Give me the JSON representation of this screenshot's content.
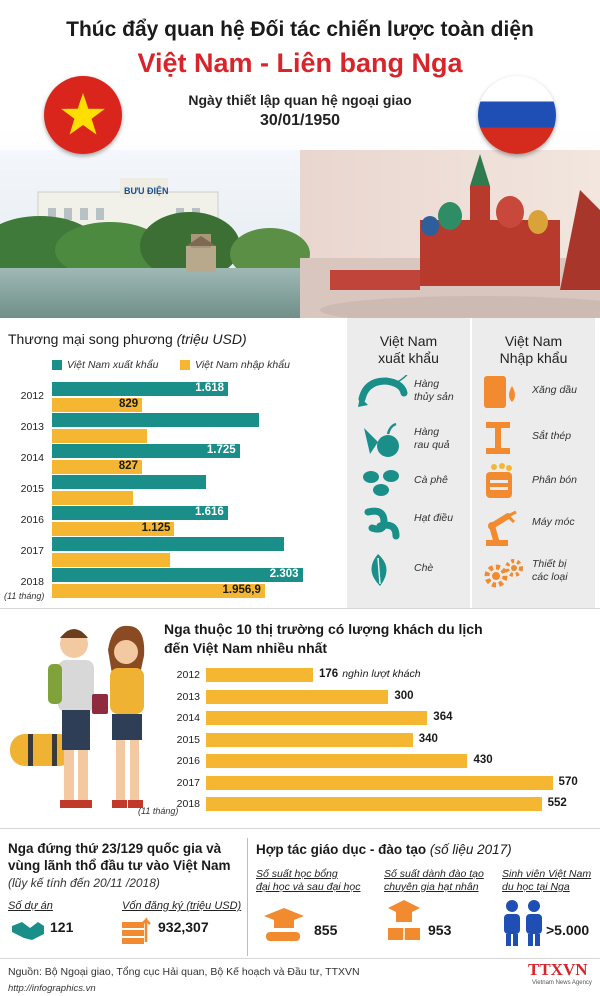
{
  "header": {
    "title_line1": "Thúc đẩy quan hệ Đối tác chiến lược toàn diện",
    "title_line2": "Việt Nam - Liên bang Nga",
    "subtitle": "Ngày thiết lập quan hệ ngoại giao",
    "date": "30/01/1950",
    "post_office_sign": "BƯU ĐIỆN"
  },
  "colors": {
    "teal": "#1a8f8a",
    "orange": "#f5b731",
    "red": "#d8242b",
    "panel": "#ececec"
  },
  "trade": {
    "title": "Thương mại song phương",
    "unit": "(triệu USD)",
    "legend_export": "Việt Nam xuất khẩu",
    "legend_import": "Việt Nam nhập khẩu",
    "year_note": "(11 tháng)"
  },
  "chart_data": [
    {
      "type": "bar",
      "title": "Thương mại song phương (triệu USD)",
      "categories": [
        "2012",
        "2013",
        "2014",
        "2015",
        "2016",
        "2017",
        "2018"
      ],
      "series": [
        {
          "name": "Việt Nam xuất khẩu",
          "values": [
            1618,
            1900,
            1725,
            1420,
            1616,
            2130,
            2303
          ],
          "labels": [
            "1.618",
            "",
            "1.725",
            "",
            "1.616",
            "",
            "2.303"
          ]
        },
        {
          "name": "Việt Nam nhập khẩu",
          "values": [
            829,
            870,
            827,
            740,
            1125,
            1080,
            1956.9
          ],
          "labels": [
            "829",
            "",
            "827",
            "",
            "1.125",
            "",
            "1.956,9"
          ]
        }
      ],
      "legend": "top"
    },
    {
      "type": "bar",
      "title": "Nga thuộc 10 thị trường có lượng khách du lịch đến Việt Nam nhiều nhất",
      "categories": [
        "2012",
        "2013",
        "2014",
        "2015",
        "2016",
        "2017",
        "2018"
      ],
      "values": [
        176,
        300,
        364,
        340,
        430,
        570,
        552
      ],
      "unit_label": "nghìn lượt khách"
    }
  ],
  "exports": {
    "heading": [
      "Việt Nam",
      "xuất khẩu"
    ],
    "items": [
      {
        "icon": "shrimp-icon",
        "label": [
          "Hàng",
          "thủy sản"
        ]
      },
      {
        "icon": "vegetables-icon",
        "label": [
          "Hàng",
          "rau quả"
        ]
      },
      {
        "icon": "coffee-beans-icon",
        "label": [
          "Cà phê"
        ]
      },
      {
        "icon": "cashew-icon",
        "label": [
          "Hạt điều"
        ]
      },
      {
        "icon": "tea-leaf-icon",
        "label": [
          "Chè"
        ]
      }
    ]
  },
  "imports": {
    "heading": [
      "Việt Nam",
      "Nhập khẩu"
    ],
    "items": [
      {
        "icon": "oil-barrel-icon",
        "label": [
          "Xăng dầu"
        ]
      },
      {
        "icon": "steel-beam-icon",
        "label": [
          "Sắt thép"
        ]
      },
      {
        "icon": "fertilizer-bag-icon",
        "label": [
          "Phân bón"
        ]
      },
      {
        "icon": "robot-arm-icon",
        "label": [
          "Máy móc"
        ]
      },
      {
        "icon": "gears-icon",
        "label": [
          "Thiết bị",
          "các loại"
        ]
      }
    ]
  },
  "tourism": {
    "title_line1": "Nga thuộc 10 thị trường có lượng khách du lịch",
    "title_line2": "đến Việt Nam nhiều nhất",
    "first_label": "176",
    "unit_label": "nghìn lượt khách",
    "values": [
      "300",
      "364",
      "340",
      "430",
      "570",
      "552"
    ],
    "year_note": "(11 tháng)"
  },
  "investment": {
    "title_line1": "Nga đứng thứ 23/129 quốc gia và",
    "title_line2": "vùng lãnh thổ đầu tư vào Việt Nam",
    "note": "(lũy kế tính đến 20/11 /2018)",
    "projects_label": "Số dự án",
    "projects_value": "121",
    "capital_label": "Vốn đăng ký (triệu USD)",
    "capital_value": "932,307"
  },
  "education": {
    "title": "Hợp tác giáo dục - đào tạo",
    "title_note": "(số liệu 2017)",
    "items": [
      {
        "label": [
          "Số suất học bổng",
          "đại học và sau đại học"
        ],
        "value": "855",
        "icon": "graduate-diploma-icon"
      },
      {
        "label": [
          "Số suất dành đào tạo",
          "chuyên gia hạt nhân"
        ],
        "value": "953",
        "icon": "graduation-cap-book-icon"
      },
      {
        "label": [
          "Sinh viên Việt Nam",
          "du học tại Nga"
        ],
        "value": ">5.000",
        "icon": "students-icon"
      }
    ]
  },
  "footer": {
    "source": "Nguồn: Bộ Ngoại giao, Tổng cục Hải quan, Bộ Kế hoạch và Đầu tư, TTXVN",
    "url": "http://infographics.vn",
    "logo": "TTXVN",
    "logo_sub": "Vietnam News Agency"
  }
}
